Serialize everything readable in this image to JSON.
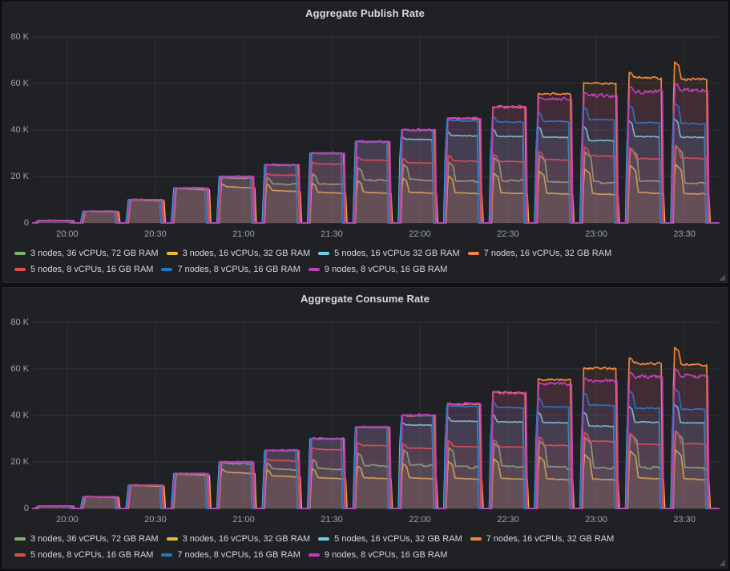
{
  "theme": {
    "page_bg": "#0f1014",
    "panel_bg": "#1f2125",
    "grid_color": "rgba(212,221,230,0.09)",
    "title_color": "#d8d9da",
    "tick_color": "#9fa4aa",
    "legend_text_color": "#d5d7da"
  },
  "chart_data": {
    "type": "area",
    "ylim_k": [
      0,
      80
    ],
    "y_ticks": [
      "0",
      "20 K",
      "40 K",
      "60 K",
      "80 K"
    ],
    "x_ticks": [
      "20:00",
      "20:30",
      "21:00",
      "21:30",
      "22:00",
      "22:30",
      "23:00",
      "23:30"
    ],
    "time_domain_min": [
      3.3,
      236.7
    ],
    "x_tick_first_min": 15,
    "x_tick_interval_min": 30,
    "grid": true,
    "legend_position": "bottom",
    "runs": {
      "start0_min": 4.6,
      "interval_min": 15.45,
      "duration_min": 11.7,
      "target_rates_k": [
        1,
        5,
        10,
        15,
        20,
        25,
        30,
        35,
        40,
        45,
        50,
        55,
        60,
        65,
        70
      ]
    },
    "series": [
      {
        "name": "3 nodes, 36 vCPUs, 72 GB RAM",
        "color": "#7EB26D",
        "plateaus_k": [
          1,
          5,
          10,
          15,
          19.6,
          17.0,
          17.2,
          18.8,
          18.8,
          18.0,
          18.5,
          17.8,
          17.9,
          18.0,
          17.5
        ],
        "ov_k": 0.3,
        "ov_max": 16,
        "sigma": 0.55,
        "drift": 0.02,
        "so": 0.3,
        "eo": 0.0,
        "steppy": true
      },
      {
        "name": "3 nodes, 16 vCPUs, 32 GB RAM",
        "color": "#EAB839",
        "plateaus_k": [
          1,
          5,
          10,
          15,
          15.8,
          14.2,
          13.4,
          13.4,
          13.4,
          13.2,
          13.2,
          13.0,
          12.8,
          13.4,
          13.0
        ],
        "ov_k": 0.22,
        "ov_max": 12.2,
        "sigma": 0.3,
        "drift": 0.05,
        "so": 0.18,
        "eo": 0.55,
        "steppy": false
      },
      {
        "name": "5 nodes, 16 vCPUs 32 GB RAM",
        "color": "#6ED0E0",
        "plateaus_k": [
          1,
          5,
          10,
          15,
          20,
          25,
          30,
          35,
          36.0,
          37.6,
          37.3,
          37.0,
          35.5,
          37.2,
          37.0
        ],
        "ov_k": 0.25,
        "ov_max": 8,
        "sigma": 0.35,
        "drift": 0.005,
        "so": -0.5,
        "eo": -0.2,
        "steppy": false
      },
      {
        "name": "7 nodes, 16 vCPUs, 32 GB RAM",
        "color": "#EF843C",
        "plateaus_k": [
          1,
          5,
          10,
          15,
          20,
          25,
          30,
          35,
          40,
          45,
          50,
          55.7,
          60.3,
          62.6,
          62.0
        ],
        "ov_k": 0.9,
        "ov_max": 7.5,
        "sigma": 0.8,
        "drift": 0.005,
        "so": -0.12,
        "eo": 0.1,
        "steppy": false
      },
      {
        "name": "5 nodes, 8 vCPUs, 16 GB RAM",
        "color": "#E24D42",
        "plateaus_k": [
          1,
          5,
          10,
          15,
          20,
          20.7,
          25.5,
          27.2,
          26.0,
          26.8,
          26.6,
          27.3,
          29.0,
          27.8,
          28.0
        ],
        "ov_k": 0.12,
        "ov_max": 5,
        "sigma": 0.4,
        "drift": 0.01,
        "so": 0.12,
        "eo": -0.1,
        "steppy": false
      },
      {
        "name": "7 nodes, 8 vCPUs, 16 GB RAM",
        "color": "#1F78C1",
        "plateaus_k": [
          1,
          5,
          10,
          15,
          20,
          25,
          30,
          35,
          40,
          44.0,
          43.5,
          43.8,
          44.5,
          43.2,
          42.8
        ],
        "ov_k": 0.35,
        "ov_max": 9,
        "sigma": 0.45,
        "drift": 0.005,
        "so": -0.35,
        "eo": -0.3,
        "steppy": false
      },
      {
        "name": "9 nodes, 8 vCPUs, 16 GB RAM",
        "color": "#C13FB5",
        "plateaus_k": [
          1,
          5,
          10,
          15,
          20,
          25,
          30,
          35,
          40,
          44.9,
          49.8,
          53.5,
          54.8,
          56.5,
          57.0
        ],
        "ov_k": 0.25,
        "ov_max": 3,
        "sigma": 1.3,
        "drift": 0,
        "so": 0.0,
        "eo": 0.35,
        "steppy": false
      }
    ],
    "panels": [
      {
        "title": "Aggregate Publish Rate",
        "seed": 11,
        "legend": [
          "3 nodes, 36 vCPUs, 72 GB RAM",
          "3 nodes, 16 vCPUs, 32 GB RAM",
          "5 nodes, 16 vCPUs 32 GB RAM",
          "7 nodes, 16 vCPUs, 32 GB RAM",
          "5 nodes, 8 vCPUs, 16 GB RAM",
          "7 nodes, 8 vCPUs, 16 GB RAM",
          "9 nodes, 8 vCPUs, 16 GB RAM"
        ]
      },
      {
        "title": "Aggregate Consume Rate",
        "seed": 77,
        "legend": [
          "3 nodes, 36 vCPUs, 72 GB RAM",
          "3 nodes, 16 vCPUs, 32 GB RAM",
          "5 nodes, 16 vCPUs, 32 GB RAM",
          "7 nodes, 16 vCPUs, 32 GB RAM",
          "5 nodes, 8 vCPUs, 16 GB RAM",
          "7 nodes, 8 vCPUs, 16 GB RAM",
          "9 nodes, 8 vCPUs, 16 GB RAM"
        ]
      }
    ]
  }
}
